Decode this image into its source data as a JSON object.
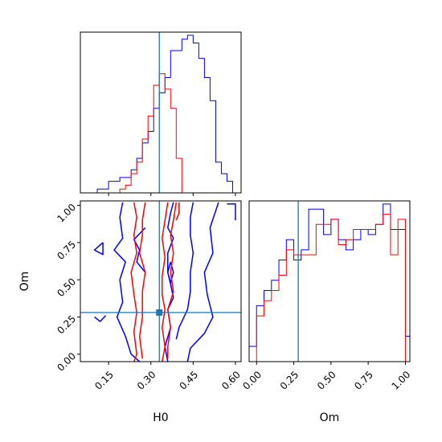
{
  "chart_data": [
    {
      "type": "histogram",
      "panel": "H0 marginal",
      "x_range": [
        0.05,
        0.62
      ],
      "bin_edges": [
        0.05,
        0.07,
        0.09,
        0.11,
        0.13,
        0.15,
        0.17,
        0.19,
        0.21,
        0.23,
        0.25,
        0.27,
        0.29,
        0.31,
        0.33,
        0.35,
        0.37,
        0.39,
        0.41,
        0.43,
        0.45,
        0.47,
        0.49,
        0.51,
        0.53,
        0.55,
        0.57,
        0.59,
        0.61
      ],
      "series": [
        {
          "color": "#0000ff",
          "values": [
            0,
            0,
            0,
            1,
            1,
            3,
            3,
            4,
            4,
            6,
            9,
            13,
            16,
            22,
            26,
            30,
            37,
            37,
            40,
            41,
            39,
            35,
            30,
            24,
            8,
            5,
            3,
            0
          ]
        },
        {
          "color": "#ff0000",
          "values": [
            0,
            0,
            0,
            0,
            0,
            0,
            0,
            1,
            2,
            5,
            8,
            14,
            20,
            28,
            31,
            27,
            22,
            9,
            0,
            0,
            0,
            0,
            0,
            0,
            0,
            0,
            0,
            0
          ]
        }
      ],
      "reference_line": {
        "x": 0.33,
        "color": "#1f77b4"
      },
      "xticks": [
        0.15,
        0.3,
        0.45,
        0.6
      ],
      "yticks_labeled": false
    },
    {
      "type": "histogram",
      "panel": "Om marginal",
      "x_range": [
        -0.05,
        1.03
      ],
      "xlabel": "Om",
      "xticks": [
        "0.00",
        "0.25",
        "0.50",
        "0.75",
        "1.00"
      ],
      "bin_edges": [
        -0.05,
        0.0,
        0.05,
        0.1,
        0.15,
        0.2,
        0.25,
        0.3,
        0.35,
        0.4,
        0.45,
        0.5,
        0.55,
        0.6,
        0.65,
        0.7,
        0.75,
        0.8,
        0.85,
        0.9,
        0.95,
        1.0,
        1.03
      ],
      "series": [
        {
          "color": "#0000ff",
          "values": [
            3,
            11,
            14,
            16,
            20,
            24,
            20,
            22,
            30,
            30,
            25,
            28,
            24,
            22,
            24,
            26,
            25,
            27,
            31,
            26,
            26,
            5
          ]
        },
        {
          "color": "#ff0000",
          "values": [
            0,
            9,
            12,
            14,
            17,
            22,
            21,
            21,
            21,
            27,
            27,
            28,
            23,
            24,
            26,
            26,
            26,
            27,
            29,
            21,
            28,
            0
          ]
        }
      ],
      "reference_line": {
        "x": 0.28,
        "color": "#1f77b4"
      }
    },
    {
      "type": "contour",
      "panel": "H0 vs Om",
      "xlabel": "H0",
      "ylabel": "Om",
      "x_range": [
        0.05,
        0.62
      ],
      "y_range": [
        -0.05,
        1.03
      ],
      "xticks": [
        "0.15",
        "0.30",
        "0.45",
        "0.60"
      ],
      "yticks": [
        "0.00",
        "0.25",
        "0.50",
        "0.75",
        "1.00"
      ],
      "reference_lines": {
        "x": 0.33,
        "y": 0.28,
        "color": "#1f77b4"
      },
      "reference_point": {
        "x": 0.33,
        "y": 0.28,
        "color": "#1f77b4"
      },
      "series": [
        {
          "color": "#0000ff",
          "contours": [
            [
              [
                0.2,
                1.02
              ],
              [
                0.19,
                0.92
              ],
              [
                0.2,
                0.78
              ],
              [
                0.17,
                0.7
              ],
              [
                0.21,
                0.62
              ],
              [
                0.19,
                0.5
              ],
              [
                0.2,
                0.35
              ],
              [
                0.18,
                0.25
              ],
              [
                0.21,
                0.12
              ],
              [
                0.23,
                0.0
              ],
              [
                0.26,
                -0.05
              ]
            ],
            [
              [
                0.13,
                0.75
              ],
              [
                0.1,
                0.7
              ],
              [
                0.13,
                0.67
              ],
              [
                0.13,
                0.75
              ]
            ],
            [
              [
                0.1,
                0.25
              ],
              [
                0.12,
                0.22
              ],
              [
                0.14,
                0.26
              ]
            ],
            [
              [
                0.38,
                1.02
              ],
              [
                0.37,
                0.95
              ],
              [
                0.36,
                0.85
              ],
              [
                0.38,
                0.78
              ],
              [
                0.36,
                0.68
              ],
              [
                0.36,
                0.55
              ],
              [
                0.37,
                0.47
              ],
              [
                0.38,
                0.38
              ],
              [
                0.36,
                0.3
              ],
              [
                0.37,
                0.18
              ],
              [
                0.35,
                0.05
              ],
              [
                0.36,
                -0.05
              ]
            ],
            [
              [
                0.37,
                0.62
              ],
              [
                0.36,
                0.55
              ],
              [
                0.37,
                0.48
              ],
              [
                0.38,
                0.55
              ],
              [
                0.37,
                0.62
              ]
            ],
            [
              [
                0.45,
                1.02
              ],
              [
                0.44,
                0.92
              ],
              [
                0.44,
                0.8
              ],
              [
                0.45,
                0.68
              ],
              [
                0.44,
                0.55
              ],
              [
                0.44,
                0.42
              ],
              [
                0.43,
                0.3
              ],
              [
                0.4,
                0.18
              ],
              [
                0.39,
                0.1
              ]
            ],
            [
              [
                0.54,
                1.02
              ],
              [
                0.51,
                0.85
              ],
              [
                0.52,
                0.68
              ],
              [
                0.49,
                0.55
              ],
              [
                0.5,
                0.4
              ],
              [
                0.52,
                0.25
              ],
              [
                0.49,
                0.14
              ],
              [
                0.44,
                0.04
              ],
              [
                0.43,
                -0.05
              ]
            ],
            [
              [
                0.57,
                1.01
              ],
              [
                0.6,
                1.01
              ],
              [
                0.6,
                0.9
              ]
            ],
            [
              [
                0.28,
                0.85
              ],
              [
                0.24,
                0.77
              ],
              [
                0.26,
                0.7
              ],
              [
                0.25,
                0.62
              ],
              [
                0.28,
                0.55
              ]
            ]
          ]
        },
        {
          "color": "#ff0000",
          "contours": [
            [
              [
                0.24,
                1.02
              ],
              [
                0.25,
                0.92
              ],
              [
                0.24,
                0.8
              ],
              [
                0.25,
                0.68
              ],
              [
                0.23,
                0.55
              ],
              [
                0.24,
                0.4
              ],
              [
                0.25,
                0.28
              ],
              [
                0.24,
                0.15
              ],
              [
                0.25,
                0.0
              ],
              [
                0.24,
                -0.05
              ]
            ],
            [
              [
                0.28,
                1.02
              ],
              [
                0.27,
                0.9
              ],
              [
                0.27,
                0.8
              ],
              [
                0.26,
                0.68
              ],
              [
                0.28,
                0.55
              ],
              [
                0.27,
                0.42
              ],
              [
                0.27,
                0.25
              ],
              [
                0.26,
                0.12
              ],
              [
                0.27,
                -0.03
              ]
            ],
            [
              [
                0.36,
                1.02
              ],
              [
                0.35,
                0.9
              ],
              [
                0.34,
                0.78
              ],
              [
                0.35,
                0.65
              ],
              [
                0.34,
                0.52
              ],
              [
                0.34,
                0.4
              ],
              [
                0.35,
                0.3
              ],
              [
                0.34,
                0.18
              ],
              [
                0.35,
                0.05
              ],
              [
                0.34,
                -0.05
              ]
            ],
            [
              [
                0.39,
                1.02
              ],
              [
                0.38,
                0.9
              ],
              [
                0.37,
                0.8
              ],
              [
                0.38,
                0.68
              ],
              [
                0.37,
                0.55
              ],
              [
                0.38,
                0.42
              ],
              [
                0.36,
                0.3
              ],
              [
                0.37,
                0.18
              ],
              [
                0.36,
                0.05
              ],
              [
                0.36,
                -0.03
              ]
            ],
            [
              [
                0.4,
                1.02
              ],
              [
                0.4,
                0.95
              ],
              [
                0.39,
                0.9
              ]
            ]
          ]
        }
      ]
    }
  ]
}
